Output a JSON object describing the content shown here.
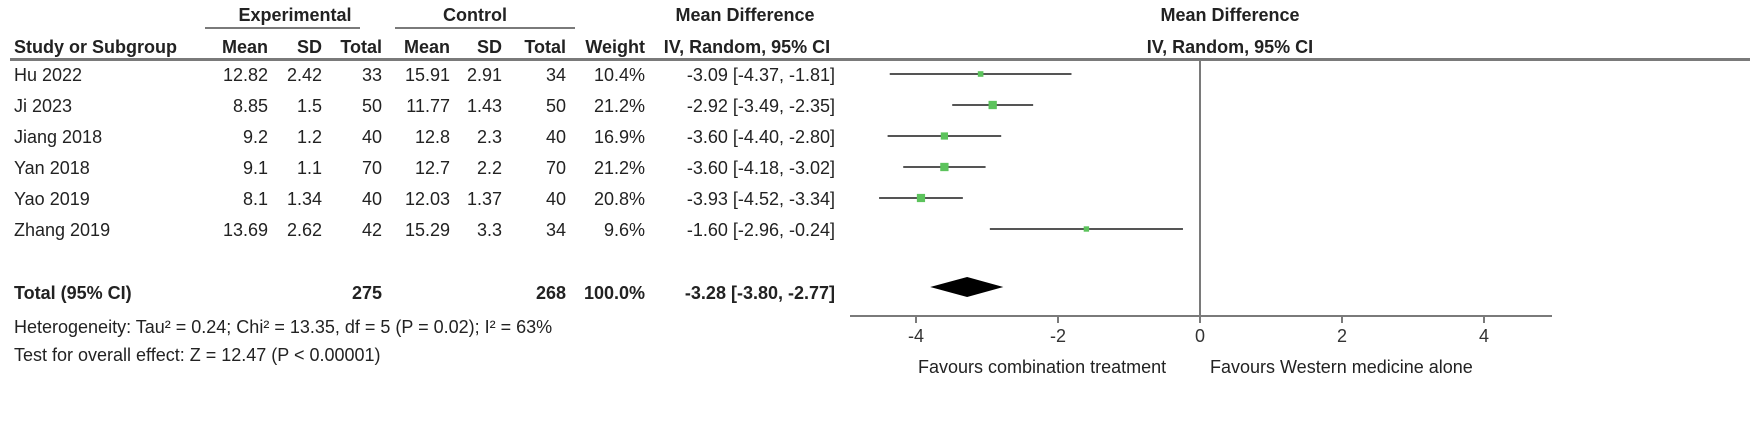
{
  "header": {
    "experimental": "Experimental",
    "control": "Control",
    "md_left": "Mean Difference",
    "md_right": "Mean Difference",
    "study": "Study or Subgroup",
    "mean": "Mean",
    "sd": "SD",
    "total": "Total",
    "weight": "Weight",
    "method_left": "IV, Random, 95% CI",
    "method_right": "IV, Random, 95% CI"
  },
  "studies": [
    {
      "name": "Hu 2022",
      "e_mean": "12.82",
      "e_sd": "2.42",
      "e_total": "33",
      "c_mean": "15.91",
      "c_sd": "2.91",
      "c_total": "34",
      "weight": "10.4%",
      "ci_text": "-3.09 [-4.37, -1.81]"
    },
    {
      "name": "Ji 2023",
      "e_mean": "8.85",
      "e_sd": "1.5",
      "e_total": "50",
      "c_mean": "11.77",
      "c_sd": "1.43",
      "c_total": "50",
      "weight": "21.2%",
      "ci_text": "-2.92 [-3.49, -2.35]"
    },
    {
      "name": "Jiang 2018",
      "e_mean": "9.2",
      "e_sd": "1.2",
      "e_total": "40",
      "c_mean": "12.8",
      "c_sd": "2.3",
      "c_total": "40",
      "weight": "16.9%",
      "ci_text": "-3.60 [-4.40, -2.80]"
    },
    {
      "name": "Yan 2018",
      "e_mean": "9.1",
      "e_sd": "1.1",
      "e_total": "70",
      "c_mean": "12.7",
      "c_sd": "2.2",
      "c_total": "70",
      "weight": "21.2%",
      "ci_text": "-3.60 [-4.18, -3.02]"
    },
    {
      "name": "Yao 2019",
      "e_mean": "8.1",
      "e_sd": "1.34",
      "e_total": "40",
      "c_mean": "12.03",
      "c_sd": "1.37",
      "c_total": "40",
      "weight": "20.8%",
      "ci_text": "-3.93 [-4.52, -3.34]"
    },
    {
      "name": "Zhang 2019",
      "e_mean": "13.69",
      "e_sd": "2.62",
      "e_total": "42",
      "c_mean": "15.29",
      "c_sd": "3.3",
      "c_total": "34",
      "weight": "9.6%",
      "ci_text": "-1.60 [-2.96, -0.24]"
    }
  ],
  "total": {
    "label": "Total (95% CI)",
    "e_total": "275",
    "c_total": "268",
    "weight": "100.0%",
    "ci_text": "-3.28 [-3.80, -2.77]"
  },
  "footer": {
    "heterogeneity": "Heterogeneity: Tau² = 0.24; Chi² = 13.35, df = 5 (P = 0.02); I² = 63%",
    "overall": "Test for overall effect: Z = 12.47 (P < 0.00001)"
  },
  "axis": {
    "ticks": [
      "-4",
      "-2",
      "0",
      "2",
      "4"
    ],
    "favours_left": "Favours combination treatment",
    "favours_right": "Favours Western medicine alone"
  },
  "colors": {
    "point": "#5cc35c",
    "ci_line": "#555555",
    "diamond": "#000000",
    "axis": "#7a7a7a"
  },
  "chart_data": {
    "type": "scatter",
    "x_range": [
      -4,
      4
    ],
    "ticks": [
      -4,
      -2,
      0,
      2,
      4
    ],
    "null_line": 0,
    "points": [
      {
        "study": "Hu 2022",
        "md": -3.09,
        "lo": -4.37,
        "hi": -1.81,
        "weight": 10.4
      },
      {
        "study": "Ji 2023",
        "md": -2.92,
        "lo": -3.49,
        "hi": -2.35,
        "weight": 21.2
      },
      {
        "study": "Jiang 2018",
        "md": -3.6,
        "lo": -4.4,
        "hi": -2.8,
        "weight": 16.9
      },
      {
        "study": "Yan 2018",
        "md": -3.6,
        "lo": -4.18,
        "hi": -3.02,
        "weight": 21.2
      },
      {
        "study": "Yao 2019",
        "md": -3.93,
        "lo": -4.52,
        "hi": -3.34,
        "weight": 20.8
      },
      {
        "study": "Zhang 2019",
        "md": -1.6,
        "lo": -2.96,
        "hi": -0.24,
        "weight": 9.6
      }
    ],
    "pooled": {
      "md": -3.28,
      "lo": -3.8,
      "hi": -2.77
    }
  }
}
